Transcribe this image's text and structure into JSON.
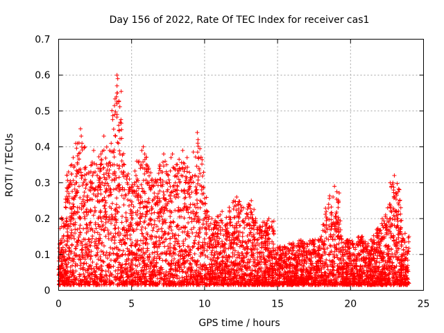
{
  "chart_data": {
    "type": "scatter",
    "title": "Day 156 of 2022, Rate Of TEC Index for receiver cas1",
    "xlabel": "GPS time / hours",
    "ylabel": "ROTI / TECUs",
    "xlim": [
      0,
      25
    ],
    "ylim": [
      0,
      0.7
    ],
    "xticks": [
      0,
      5,
      10,
      15,
      20,
      25
    ],
    "xtick_labels": [
      "0",
      "5",
      "10",
      "15",
      "20",
      "25"
    ],
    "yticks": [
      0,
      0.1,
      0.2,
      0.3,
      0.4,
      0.5,
      0.6,
      0.7
    ],
    "ytick_labels": [
      "0",
      "0.1",
      "0.2",
      "0.3",
      "0.4",
      "0.5",
      "0.6",
      "0.7"
    ],
    "grid": true,
    "marker": "plus",
    "series_color": "#ff0000",
    "series": [
      {
        "name": "ROTI",
        "points": [
          [
            0.1,
            0.05
          ],
          [
            0.2,
            0.08
          ],
          [
            0.3,
            0.12
          ],
          [
            0.4,
            0.18
          ],
          [
            0.5,
            0.23
          ],
          [
            0.6,
            0.14
          ],
          [
            0.7,
            0.27
          ],
          [
            0.8,
            0.3
          ],
          [
            0.9,
            0.35
          ],
          [
            1.0,
            0.37
          ],
          [
            1.1,
            0.26
          ],
          [
            1.2,
            0.3
          ],
          [
            1.3,
            0.22
          ],
          [
            1.4,
            0.29
          ],
          [
            1.5,
            0.45
          ],
          [
            1.55,
            0.43
          ],
          [
            1.6,
            0.41
          ],
          [
            1.7,
            0.3
          ],
          [
            1.8,
            0.2
          ],
          [
            1.9,
            0.16
          ],
          [
            2.0,
            0.25
          ],
          [
            2.1,
            0.28
          ],
          [
            2.2,
            0.3
          ],
          [
            2.3,
            0.3
          ],
          [
            2.4,
            0.39
          ],
          [
            2.5,
            0.33
          ],
          [
            2.6,
            0.35
          ],
          [
            2.7,
            0.34
          ],
          [
            2.8,
            0.3
          ],
          [
            2.9,
            0.38
          ],
          [
            3.0,
            0.3
          ],
          [
            3.1,
            0.43
          ],
          [
            3.2,
            0.25
          ],
          [
            3.3,
            0.28
          ],
          [
            3.4,
            0.32
          ],
          [
            3.5,
            0.39
          ],
          [
            3.6,
            0.41
          ],
          [
            3.7,
            0.35
          ],
          [
            3.8,
            0.35
          ],
          [
            3.9,
            0.43
          ],
          [
            4.0,
            0.6
          ],
          [
            4.0,
            0.57
          ],
          [
            4.0,
            0.55
          ],
          [
            4.0,
            0.52
          ],
          [
            4.0,
            0.49
          ],
          [
            4.05,
            0.59
          ],
          [
            4.1,
            0.41
          ],
          [
            4.2,
            0.38
          ],
          [
            4.3,
            0.33
          ],
          [
            4.4,
            0.28
          ],
          [
            4.5,
            0.35
          ],
          [
            4.6,
            0.32
          ],
          [
            4.7,
            0.3
          ],
          [
            4.8,
            0.28
          ],
          [
            4.9,
            0.25
          ],
          [
            5.0,
            0.22
          ],
          [
            5.1,
            0.27
          ],
          [
            5.2,
            0.3
          ],
          [
            5.3,
            0.32
          ],
          [
            5.4,
            0.29
          ],
          [
            5.5,
            0.36
          ],
          [
            5.6,
            0.34
          ],
          [
            5.7,
            0.39
          ],
          [
            5.8,
            0.4
          ],
          [
            5.9,
            0.38
          ],
          [
            6.0,
            0.35
          ],
          [
            6.1,
            0.33
          ],
          [
            6.2,
            0.3
          ],
          [
            6.3,
            0.28
          ],
          [
            6.4,
            0.31
          ],
          [
            6.5,
            0.29
          ],
          [
            6.6,
            0.26
          ],
          [
            6.7,
            0.3
          ],
          [
            6.8,
            0.25
          ],
          [
            6.9,
            0.34
          ],
          [
            7.0,
            0.3
          ],
          [
            7.1,
            0.33
          ],
          [
            7.2,
            0.38
          ],
          [
            7.3,
            0.36
          ],
          [
            7.4,
            0.35
          ],
          [
            7.5,
            0.32
          ],
          [
            7.6,
            0.3
          ],
          [
            7.7,
            0.37
          ],
          [
            7.8,
            0.38
          ],
          [
            7.9,
            0.34
          ],
          [
            8.0,
            0.3
          ],
          [
            8.1,
            0.28
          ],
          [
            8.2,
            0.26
          ],
          [
            8.3,
            0.3
          ],
          [
            8.4,
            0.32
          ],
          [
            8.5,
            0.39
          ],
          [
            8.6,
            0.28
          ],
          [
            8.7,
            0.3
          ],
          [
            8.8,
            0.37
          ],
          [
            8.9,
            0.28
          ],
          [
            9.0,
            0.26
          ],
          [
            9.1,
            0.3
          ],
          [
            9.2,
            0.24
          ],
          [
            9.3,
            0.2
          ],
          [
            9.4,
            0.27
          ],
          [
            9.5,
            0.44
          ],
          [
            9.55,
            0.42
          ],
          [
            9.6,
            0.37
          ],
          [
            9.7,
            0.25
          ],
          [
            9.8,
            0.28
          ],
          [
            9.9,
            0.24
          ],
          [
            10.0,
            0.2
          ],
          [
            10.1,
            0.16
          ],
          [
            10.2,
            0.22
          ],
          [
            10.3,
            0.18
          ],
          [
            10.4,
            0.14
          ],
          [
            10.5,
            0.2
          ],
          [
            10.6,
            0.17
          ],
          [
            10.7,
            0.19
          ],
          [
            10.8,
            0.15
          ],
          [
            10.9,
            0.13
          ],
          [
            11.0,
            0.18
          ],
          [
            11.2,
            0.22
          ],
          [
            11.4,
            0.18
          ],
          [
            11.6,
            0.15
          ],
          [
            11.8,
            0.19
          ],
          [
            12.0,
            0.25
          ],
          [
            12.2,
            0.26
          ],
          [
            12.4,
            0.18
          ],
          [
            12.6,
            0.15
          ],
          [
            12.8,
            0.2
          ],
          [
            13.0,
            0.24
          ],
          [
            13.2,
            0.25
          ],
          [
            13.4,
            0.18
          ],
          [
            13.6,
            0.14
          ],
          [
            13.8,
            0.16
          ],
          [
            14.0,
            0.19
          ],
          [
            14.2,
            0.12
          ],
          [
            14.4,
            0.2
          ],
          [
            14.6,
            0.1
          ],
          [
            14.8,
            0.09
          ],
          [
            15.0,
            0.12
          ],
          [
            15.2,
            0.11
          ],
          [
            15.4,
            0.08
          ],
          [
            15.6,
            0.1
          ],
          [
            15.8,
            0.13
          ],
          [
            16.0,
            0.12
          ],
          [
            16.2,
            0.09
          ],
          [
            16.4,
            0.11
          ],
          [
            16.6,
            0.14
          ],
          [
            16.8,
            0.12
          ],
          [
            17.0,
            0.13
          ],
          [
            17.2,
            0.1
          ],
          [
            17.4,
            0.14
          ],
          [
            17.6,
            0.11
          ],
          [
            17.8,
            0.12
          ],
          [
            18.0,
            0.15
          ],
          [
            18.2,
            0.13
          ],
          [
            18.4,
            0.2
          ],
          [
            18.5,
            0.24
          ],
          [
            18.6,
            0.17
          ],
          [
            18.7,
            0.21
          ],
          [
            18.8,
            0.26
          ],
          [
            18.9,
            0.29
          ],
          [
            19.0,
            0.2
          ],
          [
            19.1,
            0.15
          ],
          [
            19.2,
            0.13
          ],
          [
            19.4,
            0.11
          ],
          [
            19.6,
            0.1
          ],
          [
            19.8,
            0.14
          ],
          [
            20.0,
            0.09
          ],
          [
            20.2,
            0.12
          ],
          [
            20.4,
            0.13
          ],
          [
            20.6,
            0.1
          ],
          [
            20.8,
            0.15
          ],
          [
            21.0,
            0.12
          ],
          [
            21.2,
            0.13
          ],
          [
            21.4,
            0.11
          ],
          [
            21.6,
            0.14
          ],
          [
            21.8,
            0.17
          ],
          [
            22.0,
            0.13
          ],
          [
            22.2,
            0.18
          ],
          [
            22.4,
            0.21
          ],
          [
            22.5,
            0.2
          ],
          [
            22.6,
            0.19
          ],
          [
            22.7,
            0.24
          ],
          [
            22.8,
            0.29
          ],
          [
            22.9,
            0.3
          ],
          [
            23.0,
            0.32
          ],
          [
            23.1,
            0.27
          ],
          [
            23.2,
            0.2
          ],
          [
            23.4,
            0.17
          ],
          [
            23.6,
            0.14
          ],
          [
            23.8,
            0.12
          ],
          [
            24.0,
            0.15
          ]
        ]
      }
    ]
  }
}
